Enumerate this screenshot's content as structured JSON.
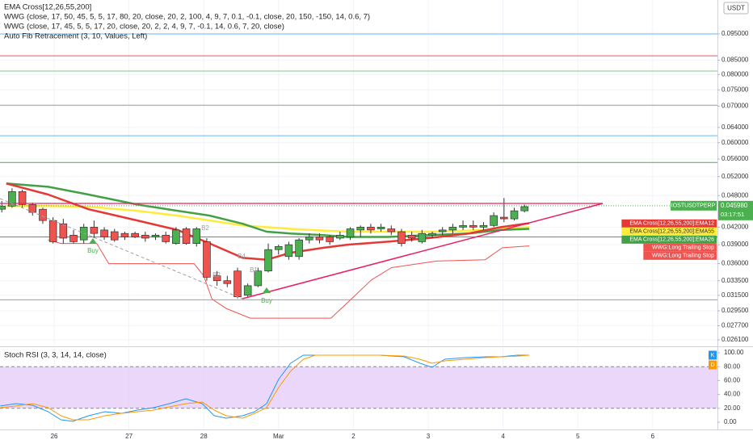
{
  "chart_data": [
    {
      "type": "candlestick",
      "indicators": [
        "EMA Cross[12,26,55,200]",
        "WWG (close, 17, 50, 45, 5, 5, 17, 80, 20, close, 20, 2, 100, 4, 9, 7, 0.1, -0.1, close, 20, 150, -150, 14, 0.6, 7)",
        "WWG (close, 17, 45, 5, 5, 17, 20, close, 20, 2, 2, 4, 9, 7, -0.1, 14, 0.6, 7, 20, close)",
        "Auto Fib Retracement (3, 10, Values, Left)"
      ],
      "currency": "USDT",
      "x": [
        25.3,
        25.437,
        25.574,
        25.711,
        25.848,
        25.985,
        26.122,
        26.259,
        26.396,
        26.533,
        26.67,
        26.807,
        26.944,
        27.081,
        27.218,
        27.355,
        27.492,
        27.629,
        27.766,
        27.903,
        28.04,
        28.177,
        28.314,
        28.451,
        28.588,
        28.725,
        28.862,
        28.999,
        29.136,
        29.273,
        29.41,
        29.547,
        29.684,
        29.821,
        29.958,
        30.095,
        30.232,
        30.369,
        30.506,
        30.643,
        30.78,
        30.917,
        31.054,
        31.191,
        31.328,
        31.465,
        31.602,
        31.739,
        31.876,
        32.013,
        32.15,
        32.287
      ],
      "open": [
        0.0453,
        0.0459,
        0.0488,
        0.0462,
        0.0453,
        0.0432,
        0.0426,
        0.0406,
        0.0398,
        0.042,
        0.0415,
        0.0412,
        0.0409,
        0.0409,
        0.0406,
        0.0403,
        0.0406,
        0.0392,
        0.0417,
        0.0392,
        0.0395,
        0.0342,
        0.0335,
        0.0349,
        0.0315,
        0.0328,
        0.0349,
        0.0382,
        0.0371,
        0.0371,
        0.0398,
        0.0403,
        0.0403,
        0.0401,
        0.0403,
        0.0415,
        0.042,
        0.0417,
        0.0417,
        0.0412,
        0.0406,
        0.0395,
        0.0406,
        0.0412,
        0.0415,
        0.042,
        0.0423,
        0.042,
        0.0423,
        0.0438,
        0.0435,
        0.045
      ],
      "high": [
        0.0469,
        0.0495,
        0.0492,
        0.0466,
        0.0456,
        0.0438,
        0.0435,
        0.0415,
        0.0426,
        0.0432,
        0.042,
        0.0417,
        0.0412,
        0.0412,
        0.0412,
        0.0409,
        0.0412,
        0.042,
        0.042,
        0.042,
        0.0401,
        0.0349,
        0.0342,
        0.0354,
        0.0331,
        0.0354,
        0.0392,
        0.039,
        0.0395,
        0.0401,
        0.0409,
        0.0409,
        0.0406,
        0.0412,
        0.042,
        0.0423,
        0.0426,
        0.0426,
        0.0423,
        0.0417,
        0.0412,
        0.0415,
        0.0412,
        0.042,
        0.0426,
        0.0432,
        0.0432,
        0.0429,
        0.0447,
        0.0475,
        0.0456,
        0.0462
      ],
      "low": [
        0.0447,
        0.0456,
        0.0456,
        0.0441,
        0.0426,
        0.0392,
        0.0392,
        0.0392,
        0.0392,
        0.0401,
        0.0398,
        0.0395,
        0.0398,
        0.0401,
        0.0395,
        0.0398,
        0.0392,
        0.039,
        0.039,
        0.0387,
        0.0335,
        0.0328,
        0.0326,
        0.0311,
        0.0313,
        0.0326,
        0.0347,
        0.0374,
        0.0366,
        0.0366,
        0.0392,
        0.0392,
        0.039,
        0.0398,
        0.0398,
        0.0403,
        0.0409,
        0.0412,
        0.0406,
        0.0387,
        0.0395,
        0.0392,
        0.0401,
        0.0406,
        0.0409,
        0.0415,
        0.0415,
        0.0415,
        0.042,
        0.0429,
        0.0432,
        0.0447
      ],
      "close": [
        0.0459,
        0.0488,
        0.0462,
        0.0447,
        0.0432,
        0.0395,
        0.0401,
        0.0395,
        0.042,
        0.0409,
        0.0403,
        0.0398,
        0.0403,
        0.0403,
        0.0401,
        0.0406,
        0.0395,
        0.0415,
        0.0392,
        0.0417,
        0.034,
        0.0335,
        0.0331,
        0.0313,
        0.0328,
        0.0349,
        0.0382,
        0.0387,
        0.039,
        0.0398,
        0.0403,
        0.0398,
        0.0395,
        0.0406,
        0.0417,
        0.042,
        0.0415,
        0.042,
        0.0412,
        0.0392,
        0.0401,
        0.0409,
        0.0409,
        0.0415,
        0.042,
        0.0423,
        0.042,
        0.0423,
        0.0441,
        0.0435,
        0.045,
        0.0458
      ],
      "up_color": "#4caf50",
      "down_color": "#ef5350",
      "xlim": [
        25.276,
        34.866
      ],
      "xticks": [
        26,
        27,
        28,
        {
          "value": 29,
          "label": "Mar"
        },
        {
          "value": 30,
          "label": "2"
        },
        {
          "value": 31,
          "label": "3"
        },
        {
          "value": 32,
          "label": "4"
        },
        {
          "value": 33,
          "label": "5"
        },
        {
          "value": 34,
          "label": "6"
        }
      ],
      "ylim": [
        0.02548,
        0.1096
      ],
      "log_scale": true,
      "yticks": [
        {
          "value": 0.095,
          "label": "0.095000"
        },
        {
          "value": 0.085,
          "label": "0.085000"
        },
        {
          "value": 0.08,
          "label": "0.080000"
        },
        {
          "value": 0.075,
          "label": "0.075000"
        },
        {
          "value": 0.07,
          "label": "0.070000"
        },
        {
          "value": 0.064,
          "label": "0.064000"
        },
        {
          "value": 0.06,
          "label": "0.060000"
        },
        {
          "value": 0.056,
          "label": "0.056000"
        },
        {
          "value": 0.052,
          "label": "0.052000"
        },
        {
          "value": 0.048,
          "label": "0.048000"
        },
        {
          "value": 0.042,
          "label": "0.042000"
        },
        {
          "value": 0.039,
          "label": "0.039000"
        },
        {
          "value": 0.036,
          "label": "0.036000"
        },
        {
          "value": 0.0335,
          "label": "0.033500"
        },
        {
          "value": 0.0315,
          "label": "0.031500"
        },
        {
          "value": 0.0295,
          "label": "0.029500"
        },
        {
          "value": 0.0277,
          "label": "0.027700"
        },
        {
          "value": 0.0261,
          "label": "0.026100"
        }
      ],
      "grid": true,
      "levels": [
        {
          "value": 0.095,
          "color": "#64b5f6"
        },
        {
          "value": 0.0866,
          "color": "#ef5350"
        },
        {
          "value": 0.0812,
          "color": "#81c784"
        },
        {
          "value": 0.0703,
          "color": "#9e9e9e"
        },
        {
          "value": 0.0618,
          "color": "#64b5f6"
        },
        {
          "value": 0.0552,
          "color": "#4caf50"
        },
        {
          "value": 0.0403,
          "color": "#ef5350"
        },
        {
          "value": 0.0309,
          "color": "#9e9e9e"
        }
      ],
      "series": [
        {
          "name": "WWG:Long Trailing Stop",
          "color": "#ef5350",
          "line_width": 1,
          "x": [
            25.92,
            26.09,
            26.57,
            26.73,
            27.87,
            28.0,
            28.11,
            28.3,
            28.62,
            29.7,
            29.94,
            30.24,
            30.51,
            31.11,
            31.76,
            31.99,
            32.35
          ],
          "values": [
            0.0398,
            0.0392,
            0.0392,
            0.036,
            0.036,
            0.0342,
            0.031,
            0.0298,
            0.0286,
            0.0286,
            0.0307,
            0.0336,
            0.0354,
            0.0364,
            0.0366,
            0.0385,
            0.0388
          ]
        },
        {
          "name": "EMA Cross[12,26,55,200]:EMA55",
          "color": "#ffeb3b",
          "line_width": 2.5,
          "x": [
            25.36,
            25.92,
            26.46,
            27.11,
            27.65,
            28.08,
            28.52,
            28.84,
            29.16,
            29.6,
            29.92,
            30.46,
            31.0,
            31.54,
            31.97,
            32.35
          ],
          "values": [
            0.0459,
            0.0459,
            0.0458,
            0.045,
            0.0441,
            0.0432,
            0.0423,
            0.042,
            0.0417,
            0.0414,
            0.0412,
            0.0412,
            0.0412,
            0.0414,
            0.0417,
            0.042
          ]
        },
        {
          "name": "EMA Cross[12,26,55,200]:EMA26",
          "color": "#43a047",
          "line_width": 2.5,
          "x": [
            25.36,
            25.92,
            26.46,
            27.11,
            27.65,
            28.08,
            28.52,
            28.84,
            29.16,
            29.6,
            29.92,
            30.46,
            31.0,
            31.54,
            31.97,
            32.35
          ],
          "values": [
            0.0505,
            0.0498,
            0.0482,
            0.0462,
            0.045,
            0.0441,
            0.0426,
            0.0412,
            0.0409,
            0.0406,
            0.0403,
            0.0403,
            0.0406,
            0.0409,
            0.0415,
            0.0417
          ]
        },
        {
          "name": "EMA Cross[12,26,55,200]:EMA12",
          "color": "#e53935",
          "line_width": 2.5,
          "x": [
            25.36,
            25.92,
            26.46,
            27.11,
            27.65,
            28.08,
            28.52,
            28.84,
            29.16,
            29.6,
            29.92,
            30.46,
            31.0,
            31.54,
            31.97,
            32.35
          ],
          "values": [
            0.0505,
            0.0482,
            0.0453,
            0.0432,
            0.0415,
            0.0392,
            0.0369,
            0.0366,
            0.0377,
            0.0385,
            0.039,
            0.0395,
            0.0401,
            0.0409,
            0.042,
            0.0427
          ]
        }
      ],
      "extra_tags": [
        {
          "text": "WWG:Long Trailing Stop",
          "color": "#ef5350"
        }
      ],
      "last_price": {
        "symbol": "IOSTUSDTPERP",
        "value": 0.04598,
        "label": "0.045980",
        "countdown": "03:17:51",
        "color": "#4caf50"
      },
      "annotations": [
        {
          "text": "Buy",
          "color": "#4caf50"
        },
        {
          "text": "Buy",
          "color": "#4caf50"
        },
        {
          "text": "B2",
          "color": "#9e9e9e"
        },
        {
          "text": "B2",
          "color": "#9e9e9e"
        },
        {
          "text": "B4",
          "color": "#9e9e9e"
        },
        {
          "text": "B1",
          "color": "#9e9e9e"
        }
      ]
    },
    {
      "type": "line",
      "title": "Stoch RSI (3, 3, 14, 14, close)",
      "x": [
        25.28,
        25.49,
        25.71,
        25.92,
        26.09,
        26.25,
        26.46,
        26.68,
        26.9,
        27.11,
        27.33,
        27.54,
        27.76,
        27.98,
        28.14,
        28.3,
        28.52,
        28.68,
        28.84,
        29.0,
        29.16,
        29.33,
        29.49,
        29.7,
        30.03,
        30.35,
        30.68,
        30.89,
        31.05,
        31.22,
        31.49,
        31.76,
        31.97,
        32.19,
        32.35
      ],
      "series": [
        {
          "name": "K",
          "color": "#2196f3",
          "values": [
            23.3,
            26.7,
            24.4,
            15.1,
            3.5,
            1.2,
            9.3,
            15.1,
            12.8,
            17.4,
            20.9,
            26.7,
            33.7,
            26.7,
            9.3,
            5.8,
            9.3,
            15.1,
            26.7,
            61.6,
            84.9,
            96.5,
            96.5,
            96.5,
            96.5,
            96.5,
            94.2,
            84.9,
            79.1,
            90.7,
            93.0,
            94.2,
            94.2,
            96.5,
            96.5
          ]
        },
        {
          "name": "D",
          "color": "#ff9800",
          "values": [
            20.9,
            23.3,
            26.7,
            20.9,
            9.3,
            3.5,
            3.5,
            9.3,
            12.8,
            15.1,
            17.4,
            22.1,
            26.7,
            29.1,
            17.4,
            9.3,
            5.8,
            12.8,
            20.9,
            50.0,
            73.3,
            90.7,
            96.5,
            96.5,
            96.5,
            96.5,
            95.3,
            90.7,
            84.9,
            88.4,
            90.7,
            93.0,
            94.2,
            95.3,
            96.5
          ]
        }
      ],
      "ylim": [
        -10.5,
        107
      ],
      "yticks": [
        {
          "value": 100,
          "label": "100.00"
        },
        {
          "value": 80,
          "label": "80.00"
        },
        {
          "value": 60,
          "label": "60.00"
        },
        {
          "value": 40,
          "label": "40.00"
        },
        {
          "value": 20,
          "label": "20.00"
        },
        {
          "value": 0,
          "label": "0.00"
        }
      ],
      "band": [
        20,
        80
      ],
      "band_color": "#e6cdf7"
    }
  ]
}
